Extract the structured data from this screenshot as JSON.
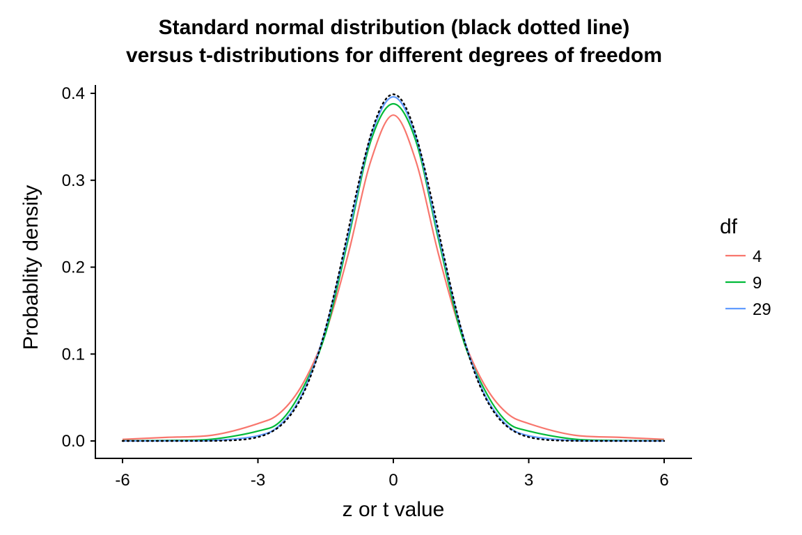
{
  "chart_data": {
    "type": "line",
    "title": "Standard normal distribution (black dotted line)\nversus t-distributions for different degrees of freedom",
    "title_lines": [
      "Standard normal distribution (black dotted line)",
      "versus t-distributions for different degrees of freedom"
    ],
    "xlabel": "z or t value",
    "ylabel": "Probablity density",
    "xlim": [
      -6,
      6
    ],
    "ylim": [
      0,
      0.4
    ],
    "x_ticks": [
      -6,
      -3,
      0,
      3,
      6
    ],
    "x_tick_labels": [
      "-6",
      "-3",
      "0",
      "3",
      "6"
    ],
    "y_ticks": [
      0.0,
      0.1,
      0.2,
      0.3,
      0.4
    ],
    "y_tick_labels": [
      "0.0",
      "0.1",
      "0.2",
      "0.3",
      "0.4"
    ],
    "grid": false,
    "legend": {
      "title": "df",
      "placement": "right",
      "entries": [
        "4",
        "9",
        "29"
      ]
    },
    "x": [
      -6,
      -5,
      -4,
      -3,
      -2.5,
      -2,
      -1.5,
      -1,
      -0.5,
      0,
      0.5,
      1,
      1.5,
      2,
      2.5,
      3,
      4,
      5,
      6
    ],
    "series": [
      {
        "name": "4",
        "color": "#F8766D",
        "values": [
          0.0018,
          0.0042,
          0.0067,
          0.02,
          0.0328,
          0.0663,
          0.125,
          0.215,
          0.322,
          0.375,
          0.322,
          0.215,
          0.125,
          0.0663,
          0.0328,
          0.02,
          0.0067,
          0.0042,
          0.0018
        ]
      },
      {
        "name": "9",
        "color": "#00BA38",
        "values": [
          0.0003,
          0.0006,
          0.0021,
          0.0114,
          0.0227,
          0.0611,
          0.124,
          0.232,
          0.345,
          0.388,
          0.345,
          0.232,
          0.124,
          0.0611,
          0.0227,
          0.0114,
          0.0021,
          0.0006,
          0.0003
        ]
      },
      {
        "name": "29",
        "color": "#619CFF",
        "values": [
          0.0,
          0.0001,
          0.0005,
          0.006,
          0.019,
          0.056,
          0.129,
          0.237,
          0.35,
          0.396,
          0.35,
          0.237,
          0.129,
          0.056,
          0.019,
          0.006,
          0.0005,
          0.0001,
          0.0
        ]
      }
    ],
    "reference": {
      "name": "standard normal",
      "color": "#000000",
      "style": "dotted",
      "distribution": "normal(0,1)"
    }
  }
}
